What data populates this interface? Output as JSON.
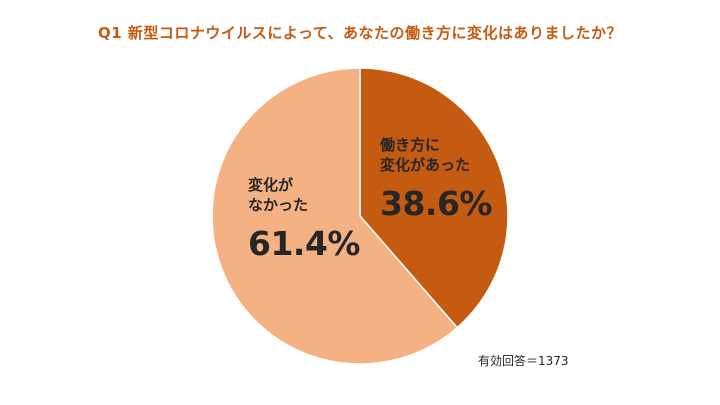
{
  "title": "Q1 新型コロナウイルスによって、あなたの働き方に変化はありましたか？",
  "note": "有効回答＝1373",
  "colors": {
    "title": "#c55a11",
    "changed": "#c55a11",
    "unchanged": "#f4b183"
  },
  "chart_data": {
    "type": "pie",
    "title": "Q1 新型コロナウイルスによって、あなたの働き方に変化はありましたか？",
    "slices": [
      {
        "label": "働き方に\n変化があった",
        "value": 38.6,
        "value_label": "38.6%",
        "color": "#c55a11"
      },
      {
        "label": "変化が\nなかった",
        "value": 61.4,
        "value_label": "61.4%",
        "color": "#f4b183"
      }
    ],
    "start_angle": "12 o'clock",
    "direction": "clockwise",
    "legend": "none",
    "annotation": "有効回答＝1373"
  }
}
